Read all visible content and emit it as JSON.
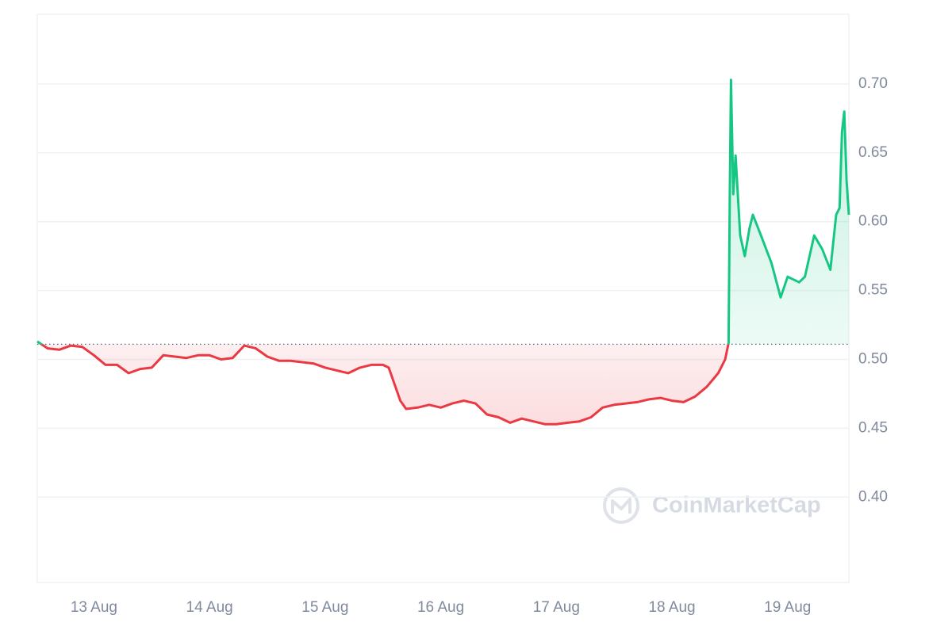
{
  "chart_data": {
    "type": "line",
    "watermark": "CoinMarketCap",
    "x": [
      12.51,
      12.6,
      12.7,
      12.8,
      12.9,
      13.0,
      13.1,
      13.2,
      13.3,
      13.4,
      13.5,
      13.6,
      13.7,
      13.8,
      13.9,
      14.0,
      14.1,
      14.2,
      14.3,
      14.4,
      14.5,
      14.6,
      14.7,
      14.8,
      14.9,
      15.0,
      15.1,
      15.2,
      15.3,
      15.4,
      15.5,
      15.55,
      15.65,
      15.7,
      15.8,
      15.9,
      16.0,
      16.1,
      16.2,
      16.3,
      16.4,
      16.5,
      16.6,
      16.7,
      16.8,
      16.9,
      17.0,
      17.1,
      17.2,
      17.3,
      17.4,
      17.5,
      17.6,
      17.7,
      17.8,
      17.9,
      18.0,
      18.1,
      18.2,
      18.3,
      18.4,
      18.46,
      18.49,
      18.5,
      18.51,
      18.53,
      18.55,
      18.59,
      18.63,
      18.67,
      18.7,
      18.77,
      18.86,
      18.94,
      19.0,
      19.1,
      19.15,
      19.23,
      19.3,
      19.37,
      19.42,
      19.45,
      19.47,
      19.49,
      19.51,
      19.53
    ],
    "series": [
      {
        "values": [
          0.513,
          0.508,
          0.507,
          0.51,
          0.509,
          0.503,
          0.496,
          0.496,
          0.49,
          0.493,
          0.494,
          0.503,
          0.502,
          0.501,
          0.503,
          0.503,
          0.5,
          0.501,
          0.51,
          0.508,
          0.502,
          0.499,
          0.499,
          0.498,
          0.497,
          0.494,
          0.492,
          0.49,
          0.494,
          0.496,
          0.496,
          0.494,
          0.47,
          0.464,
          0.465,
          0.467,
          0.465,
          0.468,
          0.47,
          0.468,
          0.46,
          0.458,
          0.454,
          0.457,
          0.455,
          0.453,
          0.453,
          0.454,
          0.455,
          0.458,
          0.465,
          0.467,
          0.468,
          0.469,
          0.471,
          0.472,
          0.47,
          0.469,
          0.473,
          0.48,
          0.49,
          0.5,
          0.512,
          0.62,
          0.703,
          0.62,
          0.648,
          0.59,
          0.575,
          0.595,
          0.605,
          0.59,
          0.57,
          0.545,
          0.56,
          0.556,
          0.56,
          0.59,
          0.58,
          0.565,
          0.605,
          0.61,
          0.665,
          0.68,
          0.63,
          0.605
        ]
      }
    ],
    "baseline": 0.511,
    "up_color": "#16c784",
    "down_color": "#ea3943",
    "xlim": [
      12.51,
      19.53
    ],
    "xticks": [
      {
        "value": 13,
        "label": "13 Aug"
      },
      {
        "value": 14,
        "label": "14 Aug"
      },
      {
        "value": 15,
        "label": "15 Aug"
      },
      {
        "value": 16,
        "label": "16 Aug"
      },
      {
        "value": 17,
        "label": "17 Aug"
      },
      {
        "value": 18,
        "label": "18 Aug"
      },
      {
        "value": 19,
        "label": "19 Aug"
      }
    ],
    "ylim": [
      0.338,
      0.7506
    ],
    "yticks": [
      {
        "value": 0.4,
        "label": "0.40"
      },
      {
        "value": 0.45,
        "label": "0.45"
      },
      {
        "value": 0.5,
        "label": "0.50"
      },
      {
        "value": 0.55,
        "label": "0.55"
      },
      {
        "value": 0.6,
        "label": "0.60"
      },
      {
        "value": 0.65,
        "label": "0.65"
      },
      {
        "value": 0.7,
        "label": "0.70"
      }
    ],
    "grid": true
  }
}
